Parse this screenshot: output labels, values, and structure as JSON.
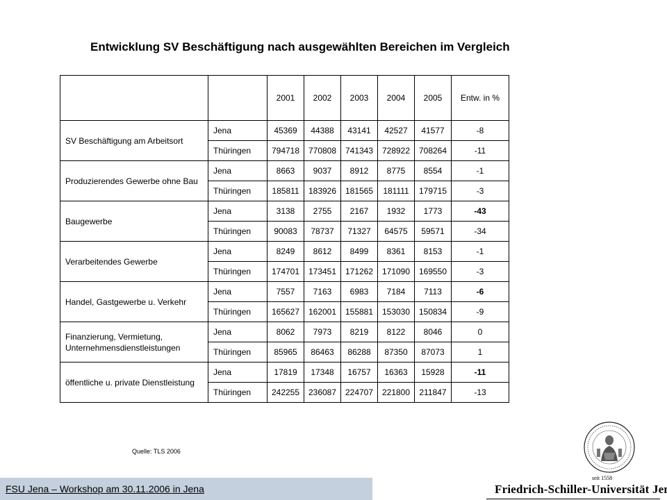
{
  "title": "Entwicklung SV Beschäftigung nach ausgewählten Bereichen im Vergleich",
  "table": {
    "headers": [
      "2001",
      "2002",
      "2003",
      "2004",
      "2005",
      "Entw. in %"
    ],
    "groups": [
      {
        "category": "SV Beschäftigung am Arbeitsort",
        "rows": [
          {
            "region": "Jena",
            "values": [
              "45369",
              "44388",
              "43141",
              "42527",
              "41577"
            ],
            "change": "-8",
            "bold": false
          },
          {
            "region": "Thüringen",
            "values": [
              "794718",
              "770808",
              "741343",
              "728922",
              "708264"
            ],
            "change": "-11",
            "bold": false
          }
        ]
      },
      {
        "category": "Produzierendes Gewerbe ohne Bau",
        "rows": [
          {
            "region": "Jena",
            "values": [
              "8663",
              "9037",
              "8912",
              "8775",
              "8554"
            ],
            "change": "-1",
            "bold": false
          },
          {
            "region": "Thüringen",
            "values": [
              "185811",
              "183926",
              "181565",
              "181111",
              "179715"
            ],
            "change": "-3",
            "bold": false
          }
        ]
      },
      {
        "category": "Baugewerbe",
        "rows": [
          {
            "region": "Jena",
            "values": [
              "3138",
              "2755",
              "2167",
              "1932",
              "1773"
            ],
            "change": "-43",
            "bold": true
          },
          {
            "region": "Thüringen",
            "values": [
              "90083",
              "78737",
              "71327",
              "64575",
              "59571"
            ],
            "change": "-34",
            "bold": false
          }
        ]
      },
      {
        "category": "Verarbeitendes Gewerbe",
        "rows": [
          {
            "region": "Jena",
            "values": [
              "8249",
              "8612",
              "8499",
              "8361",
              "8153"
            ],
            "change": "-1",
            "bold": false
          },
          {
            "region": "Thüringen",
            "values": [
              "174701",
              "173451",
              "171262",
              "171090",
              "169550"
            ],
            "change": "-3",
            "bold": false
          }
        ]
      },
      {
        "category": "Handel, Gastgewerbe u. Verkehr",
        "rows": [
          {
            "region": "Jena",
            "values": [
              "7557",
              "7163",
              "6983",
              "7184",
              "7113"
            ],
            "change": "-6",
            "bold": true
          },
          {
            "region": "Thüringen",
            "values": [
              "165627",
              "162001",
              "155881",
              "153030",
              "150834"
            ],
            "change": "-9",
            "bold": false
          }
        ]
      },
      {
        "category": "Finanzierung, Vermietung, Unternehmensdienstleistungen",
        "rows": [
          {
            "region": "Jena",
            "values": [
              "8062",
              "7973",
              "8219",
              "8122",
              "8046"
            ],
            "change": "0",
            "bold": false
          },
          {
            "region": "Thüringen",
            "values": [
              "85965",
              "86463",
              "86288",
              "87350",
              "87073"
            ],
            "change": "1",
            "bold": false
          }
        ]
      },
      {
        "category": "öffentliche u. private Dienstleistung",
        "rows": [
          {
            "region": "Jena",
            "values": [
              "17819",
              "17348",
              "16757",
              "16363",
              "15928"
            ],
            "change": "-11",
            "bold": true
          },
          {
            "region": "Thüringen",
            "values": [
              "242255",
              "236087",
              "224707",
              "221800",
              "211847"
            ],
            "change": "-13",
            "bold": false
          }
        ]
      }
    ]
  },
  "source": "Quelle: TLS 2006",
  "footer": {
    "text": "FSU Jena – Workshop am 30.11.2006 in Jena",
    "bar_color": "#c4d0dd"
  },
  "logo": {
    "seal_text": "seit 1558",
    "university": "Friedrich-Schiller-Universität Jena"
  }
}
